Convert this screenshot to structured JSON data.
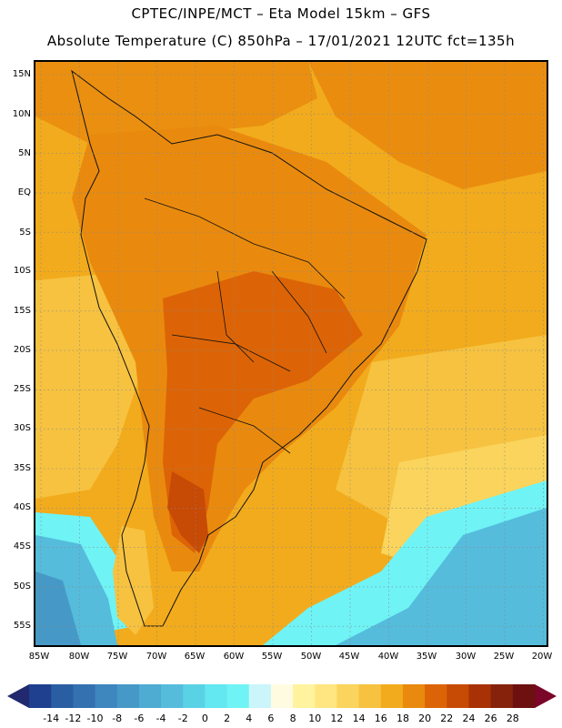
{
  "title": {
    "line1": "CPTEC/INPE/MCT –  Eta Model 15km – GFS",
    "line2": "Absolute Temperature (C) 850hPa – 17/01/2021 12UTC fct=135h"
  },
  "lat_labels": [
    "15N",
    "10N",
    "5N",
    "EQ",
    "5S",
    "10S",
    "15S",
    "20S",
    "25S",
    "30S",
    "35S",
    "40S",
    "45S",
    "50S",
    "55S"
  ],
  "lon_labels": [
    "85W",
    "80W",
    "75W",
    "70W",
    "65W",
    "60W",
    "55W",
    "50W",
    "45W",
    "40W",
    "35W",
    "30W",
    "25W",
    "20W"
  ],
  "colorbar": {
    "labels": [
      "-14",
      "-12",
      "-10",
      "-8",
      "-6",
      "-4",
      "-2",
      "0",
      "2",
      "4",
      "6",
      "8",
      "10",
      "12",
      "14",
      "16",
      "18",
      "20",
      "22",
      "24",
      "26",
      "28"
    ],
    "colors": [
      "#1f3f8f",
      "#2a5ea3",
      "#3471b0",
      "#3d86be",
      "#4699c7",
      "#4eabd2",
      "#55bcdc",
      "#5ad2e6",
      "#63e7f0",
      "#6ff3f5",
      "#c9f5fb",
      "#fffbe0",
      "#fff3a0",
      "#ffe680",
      "#fad45c",
      "#f6c240",
      "#f2ab1c",
      "#e98a0e",
      "#dc6406",
      "#c74a05",
      "#a83205",
      "#86220c",
      "#6d1010"
    ],
    "low_arrow": "#22296e",
    "high_arrow": "#7a0628"
  },
  "map": {
    "ocean": "#f2ab1c",
    "warm": "#e98a0e",
    "hot": "#dc6406",
    "very_hot": "#c74a05",
    "mild": "#f6c240",
    "cool": "#fad45c",
    "cold": "#63e7f0",
    "colder": "#55bcdc"
  }
}
